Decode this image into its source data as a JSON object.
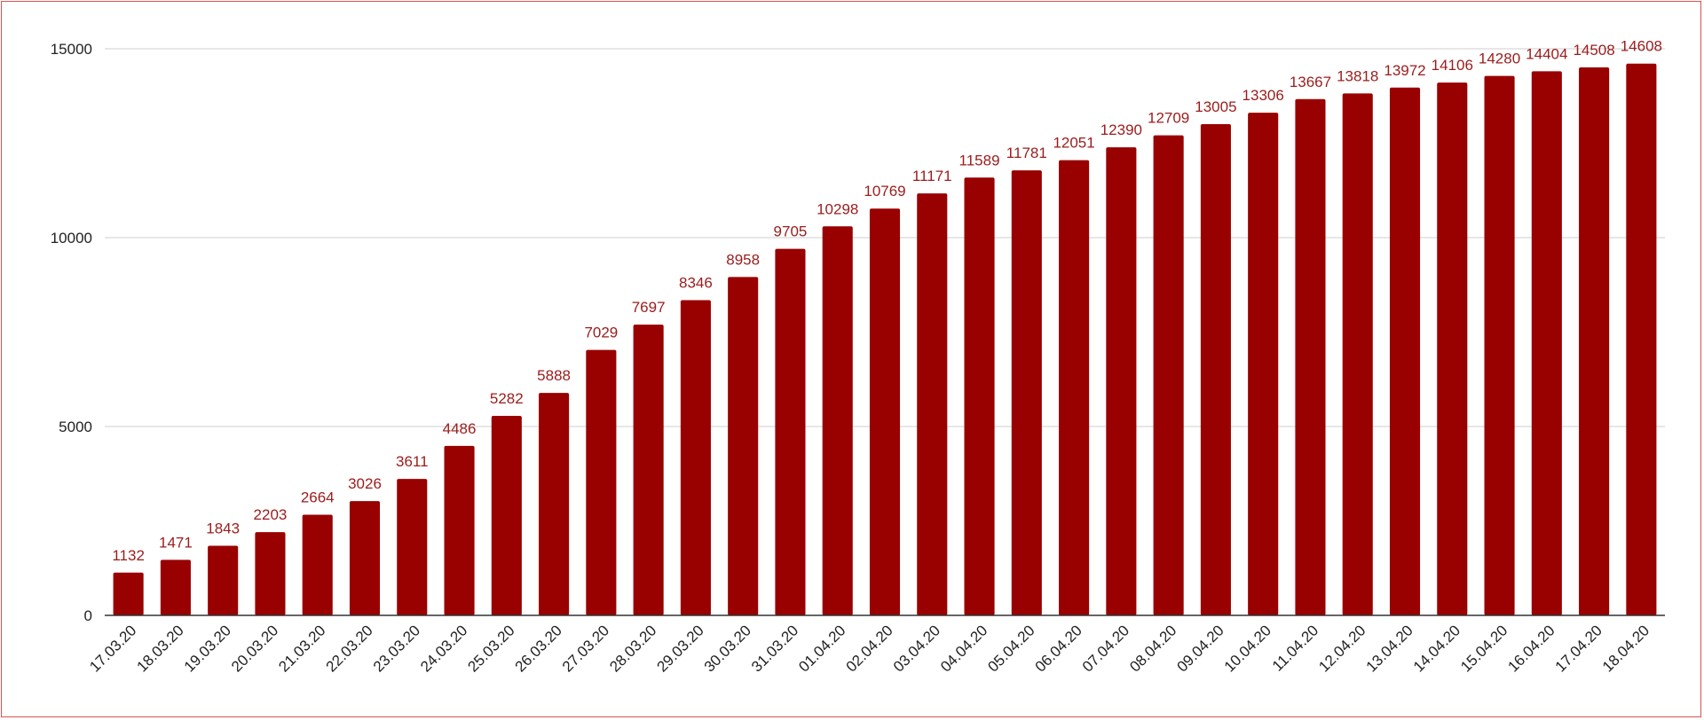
{
  "colors": {
    "bar": "#990000",
    "label": "#9b1c1c",
    "border": "#d9534f"
  },
  "chart_data": {
    "type": "bar",
    "title": "",
    "xlabel": "",
    "ylabel": "",
    "ylim": [
      0,
      15000
    ],
    "yticks": [
      0,
      5000,
      10000,
      15000
    ],
    "grid": true,
    "legend": "none",
    "categories": [
      "17.03.20",
      "18.03.20",
      "19.03.20",
      "20.03.20",
      "21.03.20",
      "22.03.20",
      "23.03.20",
      "24.03.20",
      "25.03.20",
      "26.03.20",
      "27.03.20",
      "28.03.20",
      "29.03.20",
      "30.03.20",
      "31.03.20",
      "01.04.20",
      "02.04.20",
      "03.04.20",
      "04.04.20",
      "05.04.20",
      "06.04.20",
      "07.04.20",
      "08.04.20",
      "09.04.20",
      "10.04.20",
      "11.04.20",
      "12.04.20",
      "13.04.20",
      "14.04.20",
      "15.04.20",
      "16.04.20",
      "17.04.20",
      "18.04.20"
    ],
    "values": [
      1132,
      1471,
      1843,
      2203,
      2664,
      3026,
      3611,
      4486,
      5282,
      5888,
      7029,
      7697,
      8346,
      8958,
      9705,
      10298,
      10769,
      11171,
      11589,
      11781,
      12051,
      12390,
      12709,
      13005,
      13306,
      13667,
      13818,
      13972,
      14106,
      14280,
      14404,
      14508,
      14608
    ]
  }
}
